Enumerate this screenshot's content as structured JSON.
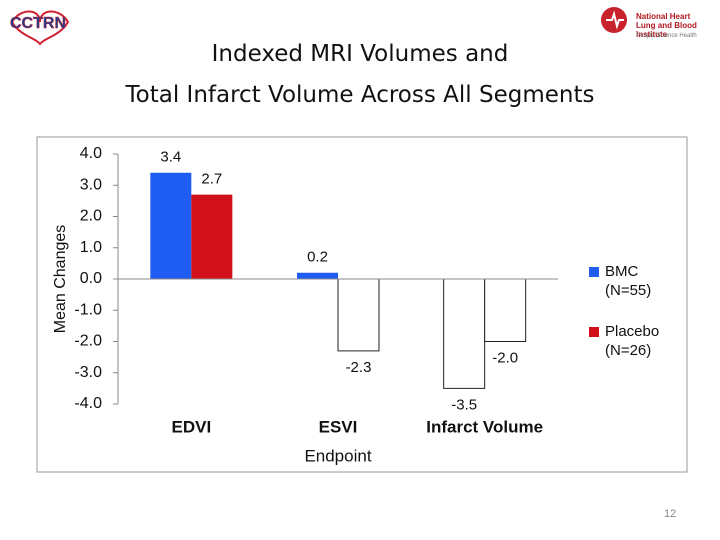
{
  "logo_left": "CCTRN",
  "logo_right": {
    "name": "National Heart\nLung and Blood Institute",
    "tagline": "People Science Health"
  },
  "page_number": "12",
  "chart_data": {
    "type": "bar",
    "title": "Indexed MRI Volumes and\nTotal Infarct Volume Across All Segments",
    "categories": [
      "EDVI",
      "ESVI",
      "Infarct Volume"
    ],
    "series": [
      {
        "name": "BMC (N=55)",
        "color": "#1f5cf2",
        "values": [
          3.4,
          0.2,
          -3.5
        ],
        "value_labels": [
          "3.4",
          "0.2",
          "-3.5"
        ]
      },
      {
        "name": "Placebo (N=26)",
        "color": "#d0101a",
        "values": [
          2.7,
          -2.3,
          -2.0
        ],
        "value_labels": [
          "2.7",
          "-2.3",
          "-2.0"
        ]
      }
    ],
    "invert_if_negative": true,
    "ylabel": "Mean Changes",
    "xlabel": "Endpoint",
    "ylim": [
      -4,
      4
    ],
    "yticks": [
      {
        "value": 4,
        "label": "4.0"
      },
      {
        "value": 3,
        "label": "3.0"
      },
      {
        "value": 2,
        "label": "2.0"
      },
      {
        "value": 1,
        "label": "1.0"
      },
      {
        "value": 0,
        "label": "0.0"
      },
      {
        "value": -1,
        "label": "-1.0"
      },
      {
        "value": -2,
        "label": "-2.0"
      },
      {
        "value": -3,
        "label": "-3.0"
      },
      {
        "value": -4,
        "label": "-4.0"
      }
    ],
    "legend": "right",
    "grid": false
  }
}
